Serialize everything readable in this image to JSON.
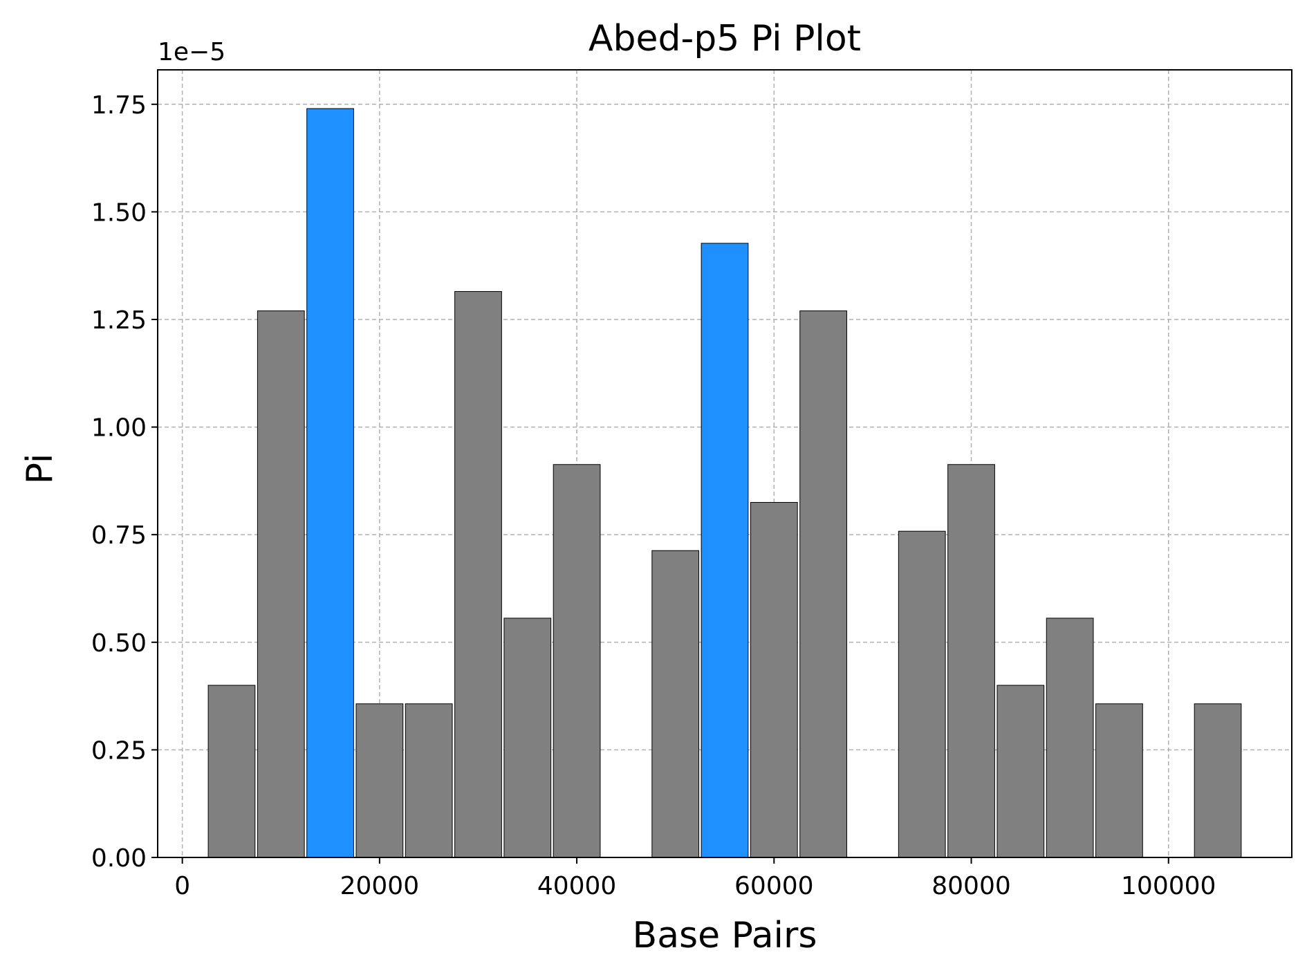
{
  "chart_data": {
    "type": "bar",
    "title": "Abed-p5 Pi Plot",
    "xlabel": "Base Pairs",
    "ylabel": "Pi",
    "y_offset_label": "1e−5",
    "y_scale": 1e-05,
    "xlim": [
      -2500,
      112500
    ],
    "ylim": [
      0,
      1.83
    ],
    "x_ticks": [
      0,
      20000,
      40000,
      60000,
      80000,
      100000
    ],
    "x_tick_labels": [
      "0",
      "20000",
      "40000",
      "60000",
      "80000",
      "100000"
    ],
    "y_ticks": [
      0,
      0.25,
      0.5,
      0.75,
      1.0,
      1.25,
      1.5,
      1.75
    ],
    "y_tick_labels": [
      "0.00",
      "0.25",
      "0.50",
      "0.75",
      "1.00",
      "1.25",
      "1.50",
      "1.75"
    ],
    "grid": true,
    "bar_width": 4750,
    "colors": {
      "default": "#808080",
      "highlight": "#1e90ff"
    },
    "bars": [
      {
        "x": 5000,
        "value": 0.4,
        "highlight": false
      },
      {
        "x": 10000,
        "value": 1.27,
        "highlight": false
      },
      {
        "x": 15000,
        "value": 1.74,
        "highlight": true
      },
      {
        "x": 20000,
        "value": 0.357,
        "highlight": false
      },
      {
        "x": 25000,
        "value": 0.357,
        "highlight": false
      },
      {
        "x": 30000,
        "value": 1.315,
        "highlight": false
      },
      {
        "x": 35000,
        "value": 0.556,
        "highlight": false
      },
      {
        "x": 40000,
        "value": 0.913,
        "highlight": false
      },
      {
        "x": 50000,
        "value": 0.713,
        "highlight": false
      },
      {
        "x": 55000,
        "value": 1.427,
        "highlight": true
      },
      {
        "x": 60000,
        "value": 0.825,
        "highlight": false
      },
      {
        "x": 65000,
        "value": 1.27,
        "highlight": false
      },
      {
        "x": 75000,
        "value": 0.758,
        "highlight": false
      },
      {
        "x": 80000,
        "value": 0.913,
        "highlight": false
      },
      {
        "x": 85000,
        "value": 0.4,
        "highlight": false
      },
      {
        "x": 90000,
        "value": 0.556,
        "highlight": false
      },
      {
        "x": 95000,
        "value": 0.357,
        "highlight": false
      },
      {
        "x": 105000,
        "value": 0.357,
        "highlight": false
      }
    ]
  }
}
